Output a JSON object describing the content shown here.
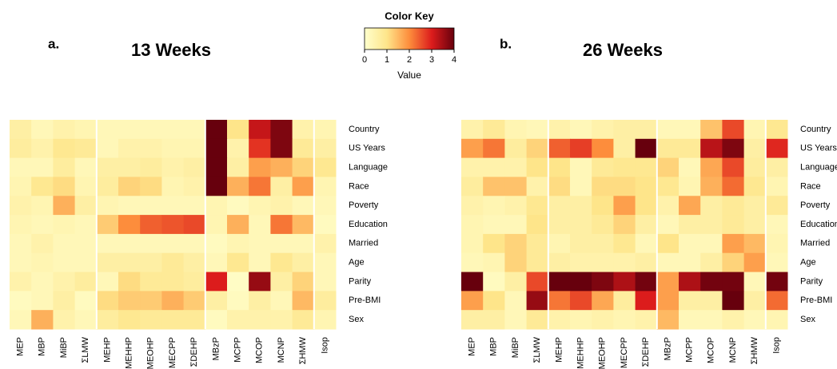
{
  "chart_data": [
    {
      "type": "heatmap",
      "panel_label": "a.",
      "title": "13 Weeks",
      "columns": [
        "MEP",
        "MBP",
        "MiBP",
        "ΣLMW",
        "MEHP",
        "MEHHP",
        "MEOHP",
        "MECPP",
        "ΣDEHP",
        "MBzP",
        "MCPP",
        "MCOP",
        "MCNP",
        "ΣHMW",
        "Isop"
      ],
      "rows": [
        "Country",
        "US Years",
        "Language",
        "Race",
        "Poverty",
        "Education",
        "Married",
        "Age",
        "Parity",
        "Pre-BMI",
        "Sex"
      ],
      "separators_after": [
        3,
        8,
        13
      ],
      "values": [
        [
          0.6,
          0.3,
          0.5,
          0.4,
          0.3,
          0.3,
          0.3,
          0.3,
          0.3,
          4,
          1,
          3.2,
          3.8,
          0.5,
          0.4
        ],
        [
          0.7,
          0.5,
          0.9,
          0.8,
          0.3,
          0.5,
          0.5,
          0.4,
          0.4,
          4,
          0.5,
          2.8,
          3.8,
          0.8,
          0.6
        ],
        [
          0.3,
          0.3,
          0.7,
          0.3,
          0.6,
          0.6,
          0.7,
          0.5,
          0.6,
          4,
          0.6,
          1.8,
          1.6,
          1.2,
          0.9
        ],
        [
          0.4,
          0.9,
          1.1,
          0.4,
          0.7,
          1.2,
          1.1,
          0.4,
          0.5,
          4,
          1.6,
          2.2,
          0.6,
          1.8,
          0.4
        ],
        [
          0.5,
          0.4,
          1.6,
          0.6,
          0.4,
          0.3,
          0.3,
          0.3,
          0.3,
          0.4,
          0.2,
          0.4,
          0.5,
          0.3,
          0.3
        ],
        [
          0.4,
          0.3,
          0.4,
          0.3,
          1.3,
          2,
          2.4,
          2.5,
          2.6,
          0.4,
          1.6,
          0.3,
          2.2,
          1.5,
          0.2
        ],
        [
          0.3,
          0.5,
          0.3,
          0.3,
          0.3,
          0.3,
          0.3,
          0.3,
          0.3,
          0.2,
          0.4,
          0.3,
          0.3,
          0.3,
          0.5
        ],
        [
          0.3,
          0.4,
          0.3,
          0.3,
          0.6,
          0.6,
          0.6,
          0.8,
          0.6,
          0.3,
          0.9,
          0.3,
          0.9,
          0.6,
          0.3
        ],
        [
          0.5,
          0.3,
          0.5,
          0.7,
          0.3,
          1.1,
          0.8,
          0.8,
          0.7,
          3,
          0.1,
          3.6,
          0.6,
          1.2,
          0.3
        ],
        [
          0.2,
          0.3,
          0.6,
          0.2,
          1.1,
          1.3,
          1.3,
          1.6,
          1.3,
          0.6,
          0.2,
          0.6,
          0.3,
          1.5,
          0.7
        ],
        [
          0.3,
          1.6,
          0.5,
          0.3,
          0.7,
          0.9,
          0.8,
          0.8,
          0.8,
          0.2,
          0.5,
          0.5,
          0.5,
          0.8,
          0.4
        ]
      ]
    },
    {
      "type": "heatmap",
      "panel_label": "b.",
      "title": "26 Weeks",
      "columns": [
        "MEP",
        "MBP",
        "MiBP",
        "ΣLMW",
        "MEHP",
        "MEHHP",
        "MEOHP",
        "MECPP",
        "ΣDEHP",
        "MBzP",
        "MCPP",
        "MCOP",
        "MCNP",
        "ΣHMW",
        "Isop"
      ],
      "rows": [
        "Country",
        "US Years",
        "Language",
        "Race",
        "Poverty",
        "Education",
        "Married",
        "Age",
        "Parity",
        "Pre-BMI",
        "Sex"
      ],
      "separators_after": [
        3,
        8,
        13
      ],
      "values": [
        [
          0.5,
          0.8,
          0.4,
          0.3,
          0.5,
          0.3,
          0.5,
          0.6,
          0.6,
          0.3,
          0.3,
          1.4,
          2.6,
          0.4,
          0.9
        ],
        [
          1.8,
          2.2,
          0.7,
          1.2,
          2.4,
          2.7,
          2,
          0.6,
          4,
          0.8,
          0.8,
          3.3,
          3.8,
          0.6,
          2.9
        ],
        [
          0.5,
          0.5,
          0.5,
          1,
          1,
          0.3,
          0.8,
          0.9,
          0.9,
          1.2,
          0.3,
          1.7,
          2.6,
          0.7,
          0.6
        ],
        [
          0.7,
          1.4,
          1.4,
          0.5,
          1.1,
          0.3,
          1.1,
          1.1,
          1,
          0.9,
          0.4,
          1.6,
          2.3,
          0.9,
          0.4
        ],
        [
          0.5,
          0.4,
          0.5,
          0.9,
          0.6,
          0.6,
          1,
          1.8,
          1,
          0.5,
          1.7,
          0.6,
          0.8,
          0.6,
          0.8
        ],
        [
          0.4,
          0.3,
          0.3,
          1,
          0.6,
          0.6,
          0.8,
          1.2,
          0.6,
          0.3,
          0.6,
          0.6,
          0.8,
          0.6,
          0.3
        ],
        [
          0.4,
          1,
          1.2,
          0.8,
          0.4,
          0.6,
          0.6,
          0.9,
          0.3,
          1,
          0.3,
          0.3,
          1.8,
          1.5,
          0.4
        ],
        [
          0.3,
          0.4,
          1.2,
          0.8,
          0.6,
          0.5,
          0.5,
          0.5,
          0.6,
          0.3,
          0.3,
          0.6,
          1.2,
          1.8,
          0.3
        ],
        [
          4,
          0.2,
          0.6,
          2.6,
          4,
          4,
          3.8,
          3.4,
          3.9,
          1.8,
          3.4,
          3.9,
          3.9,
          0.3,
          3.9
        ],
        [
          1.8,
          1,
          0.3,
          3.6,
          2.2,
          2.6,
          1.7,
          0.7,
          3,
          1.8,
          0.6,
          0.6,
          4,
          0.6,
          2.3
        ],
        [
          0.6,
          0.6,
          0.3,
          0.8,
          0.5,
          0.4,
          0.5,
          0.4,
          0.5,
          1.5,
          0.3,
          0.3,
          0.5,
          0.3,
          0.4
        ]
      ]
    }
  ],
  "color_key": {
    "title": "Color Key",
    "xlabel": "Value",
    "xlim": [
      0,
      4
    ],
    "xticks": [
      0,
      1,
      2,
      3,
      4
    ],
    "colors": [
      "#ffffcc",
      "#fee58a",
      "#fd8d3c",
      "#dc1c1c",
      "#67000d"
    ]
  }
}
